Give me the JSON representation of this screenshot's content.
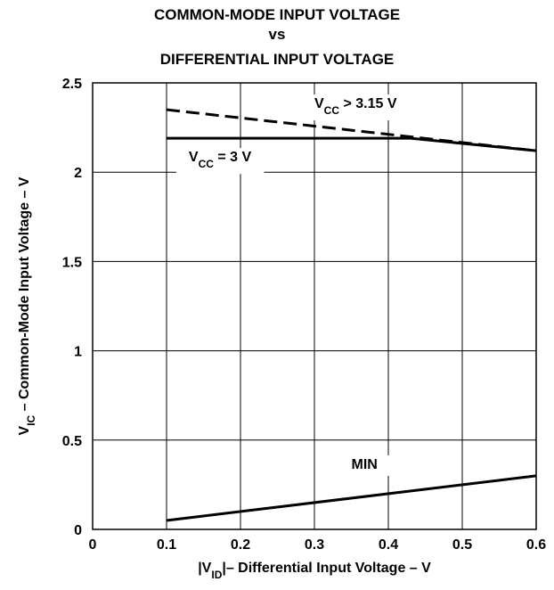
{
  "chart_data": {
    "type": "line",
    "title_lines": [
      "COMMON-MODE INPUT VOLTAGE",
      "vs",
      "DIFFERENTIAL INPUT VOLTAGE"
    ],
    "xlabel": {
      "pre": "|V",
      "sub": "ID",
      "post": "|– Differential Input  Voltage – V"
    },
    "ylabel": {
      "pre": "V",
      "sub": "IC",
      "post": " – Common-Mode Input Voltage – V"
    },
    "xlim": [
      0,
      0.6
    ],
    "ylim": [
      0,
      2.5
    ],
    "x_ticks": [
      0,
      0.1,
      0.2,
      0.3,
      0.4,
      0.5,
      0.6
    ],
    "x_tick_labels": [
      "0",
      "0.1",
      "0.2",
      "0.3",
      "0.4",
      "0.5",
      "0.6"
    ],
    "y_ticks": [
      0,
      0.5,
      1,
      1.5,
      2,
      2.5
    ],
    "y_tick_labels": [
      "0",
      "0.5",
      "1",
      "1.5",
      "2",
      "2.5"
    ],
    "grid": true,
    "series": [
      {
        "style": "dashed",
        "color": "#000000",
        "x": [
          0.1,
          0.6
        ],
        "y": [
          2.35,
          2.12
        ]
      },
      {
        "style": "solid",
        "color": "#000000",
        "x": [
          0.1,
          0.43,
          0.6
        ],
        "y": [
          2.19,
          2.19,
          2.12
        ]
      },
      {
        "style": "solid",
        "color": "#000000",
        "x": [
          0.1,
          0.6
        ],
        "y": [
          0.05,
          0.3
        ]
      }
    ],
    "annotations": [
      {
        "id": "vcc-high",
        "pre": "V",
        "sub": "CC",
        "post": " > 3.15 V",
        "x": 0.3,
        "y": 2.36,
        "anchor": "start"
      },
      {
        "id": "vcc-3v",
        "pre": "V",
        "sub": "CC",
        "post": " = 3 V",
        "x": 0.13,
        "y": 2.06,
        "anchor": "start"
      },
      {
        "id": "min",
        "text": "MIN",
        "x": 0.35,
        "y": 0.34,
        "anchor": "start"
      }
    ]
  }
}
